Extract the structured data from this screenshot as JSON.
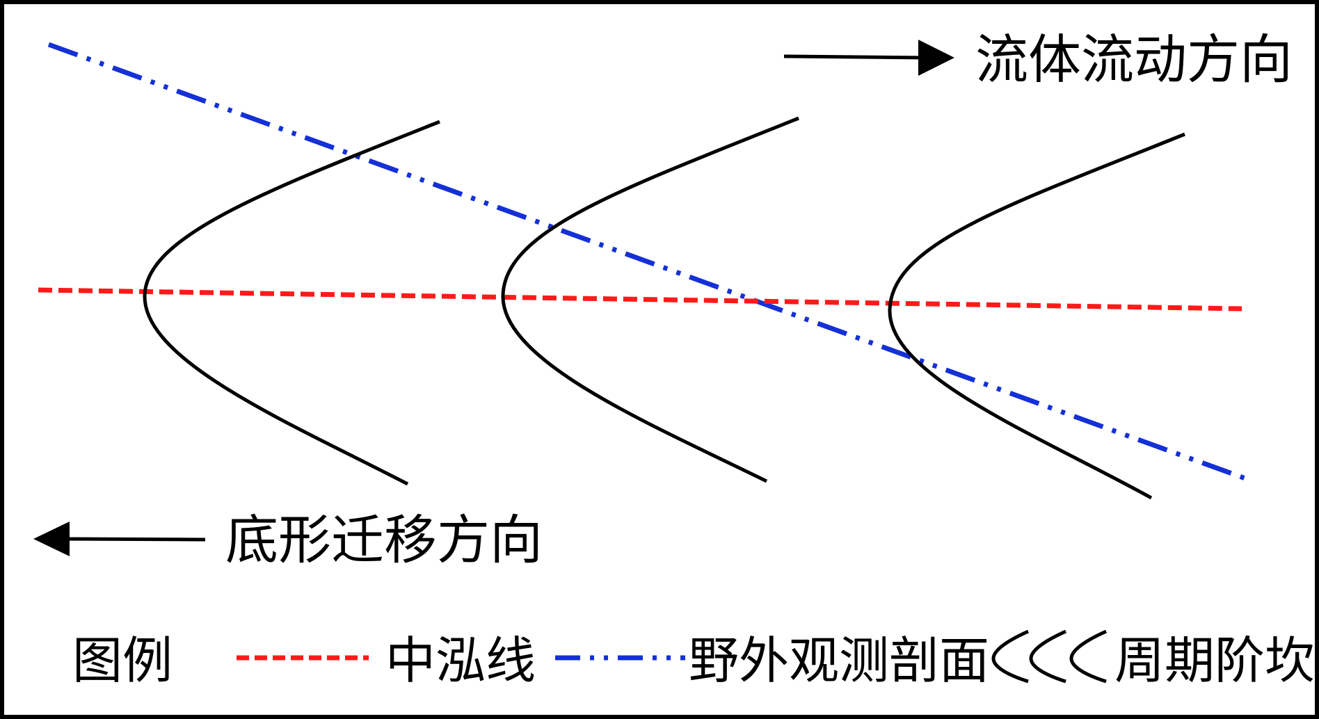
{
  "labels": {
    "flow_direction": "流体流动方向",
    "migration_direction": "底形迁移方向"
  },
  "legend": {
    "title": "图例",
    "thalweg": "中泓线",
    "profile": "野外观测剖面",
    "scarp": "周期阶坎"
  },
  "colors": {
    "thalweg": "#ff1a1a",
    "profile": "#1430d6",
    "scarp": "#000000",
    "arrow": "#000000",
    "border": "#000000"
  },
  "icons": {
    "flow_arrow": "right-arrow-icon",
    "migration_arrow": "left-arrow-icon",
    "scarp_symbol": "chevron-left-icon"
  }
}
